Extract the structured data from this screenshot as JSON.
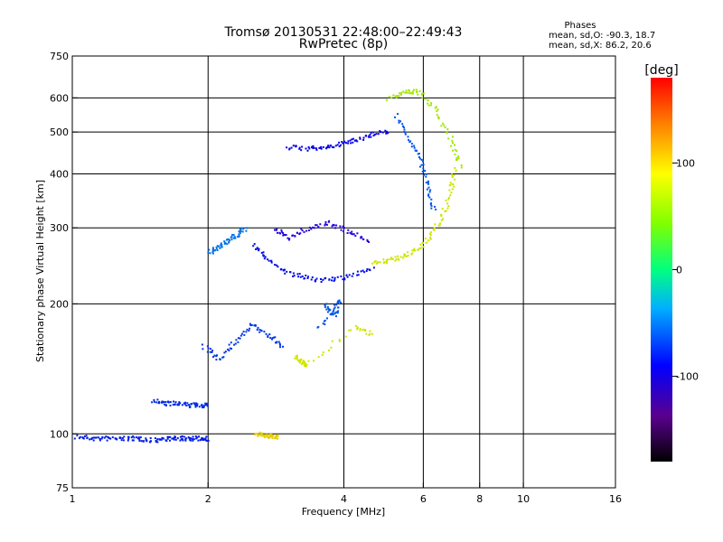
{
  "chart_data": {
    "type": "scatter",
    "title": "Tromsø 20130531 22:48:00–22:49:43",
    "subtitle": "RwPretec (8p)",
    "xlabel": "Frequency [MHz]",
    "ylabel": "Stationary phase Virtual Height [km]",
    "x_scale": "log",
    "y_scale": "log",
    "xlim": [
      1,
      16
    ],
    "ylim": [
      75,
      750
    ],
    "x_ticks": [
      1,
      2,
      4,
      6,
      8,
      10,
      16
    ],
    "y_ticks": [
      75,
      100,
      200,
      300,
      400,
      500,
      600,
      750
    ],
    "x_grid": [
      2,
      4,
      6,
      8,
      10
    ],
    "y_grid": [
      100,
      200,
      300,
      400,
      500,
      600
    ],
    "phase_box": {
      "heading": "Phases",
      "line_o": "mean, sd,O: -90.3, 18.7",
      "line_x": "mean, sd,X: 86.2, 20.6"
    },
    "colorbar": {
      "unit": "[deg]",
      "range": [
        -180,
        180
      ],
      "ticks": [
        100,
        0,
        -100
      ]
    },
    "traces": [
      {
        "phase": -120,
        "points": [
          [
            1.02,
            99
          ],
          [
            1.1,
            98
          ],
          [
            1.2,
            98
          ],
          [
            1.3,
            98
          ],
          [
            1.4,
            98
          ],
          [
            1.5,
            97
          ],
          [
            1.6,
            98
          ],
          [
            1.7,
            98
          ],
          [
            1.8,
            98
          ],
          [
            1.9,
            98
          ],
          [
            1.98,
            98
          ]
        ]
      },
      {
        "phase": -115,
        "points": [
          [
            1.5,
            120
          ],
          [
            1.6,
            118
          ],
          [
            1.7,
            118
          ],
          [
            1.8,
            117
          ],
          [
            1.9,
            117
          ],
          [
            2.0,
            117
          ]
        ]
      },
      {
        "phase": -110,
        "points": [
          [
            1.95,
            160
          ],
          [
            2.1,
            150
          ],
          [
            2.3,
            165
          ],
          [
            2.5,
            180
          ],
          [
            2.7,
            170
          ],
          [
            2.9,
            160
          ]
        ]
      },
      {
        "phase": -125,
        "points": [
          [
            2.5,
            275
          ],
          [
            2.7,
            255
          ],
          [
            3.0,
            237
          ],
          [
            3.3,
            230
          ],
          [
            3.7,
            228
          ],
          [
            4.1,
            232
          ],
          [
            4.6,
            245
          ]
        ]
      },
      {
        "phase": 95,
        "points": [
          [
            4.6,
            250
          ],
          [
            5.0,
            253
          ],
          [
            5.4,
            258
          ],
          [
            5.8,
            268
          ],
          [
            6.2,
            288
          ],
          [
            6.6,
            320
          ],
          [
            6.9,
            370
          ],
          [
            7.0,
            410
          ]
        ]
      },
      {
        "phase": -140,
        "points": [
          [
            2.8,
            300
          ],
          [
            3.0,
            285
          ],
          [
            3.3,
            300
          ],
          [
            3.7,
            310
          ],
          [
            4.1,
            295
          ],
          [
            4.5,
            282
          ]
        ]
      },
      {
        "phase": -130,
        "points": [
          [
            3.0,
            463
          ],
          [
            3.3,
            460
          ],
          [
            3.6,
            462
          ],
          [
            3.9,
            470
          ],
          [
            4.2,
            482
          ],
          [
            4.6,
            495
          ],
          [
            5.0,
            505
          ]
        ]
      },
      {
        "phase": 80,
        "points": [
          [
            5.0,
            600
          ],
          [
            5.5,
            625
          ],
          [
            5.9,
            620
          ],
          [
            6.4,
            560
          ],
          [
            6.9,
            480
          ],
          [
            7.2,
            420
          ]
        ]
      },
      {
        "phase": -90,
        "points": [
          [
            2.0,
            265
          ],
          [
            2.1,
            270
          ],
          [
            2.2,
            280
          ],
          [
            2.3,
            290
          ],
          [
            2.4,
            300
          ]
        ]
      },
      {
        "phase": 110,
        "points": [
          [
            2.55,
            100
          ],
          [
            2.65,
            100
          ],
          [
            2.75,
            99
          ],
          [
            2.85,
            99
          ]
        ]
      },
      {
        "phase": 95,
        "points": [
          [
            3.1,
            152
          ],
          [
            3.2,
            148
          ],
          [
            3.3,
            145
          ],
          [
            4.2,
            178
          ],
          [
            4.6,
            170
          ]
        ]
      },
      {
        "phase": -100,
        "points": [
          [
            3.6,
            200
          ],
          [
            3.8,
            190
          ],
          [
            3.9,
            205
          ],
          [
            3.5,
            175
          ]
        ]
      },
      {
        "phase": -100,
        "points": [
          [
            5.2,
            550
          ],
          [
            5.6,
            480
          ],
          [
            5.9,
            430
          ],
          [
            6.1,
            380
          ],
          [
            6.3,
            330
          ]
        ]
      }
    ]
  }
}
